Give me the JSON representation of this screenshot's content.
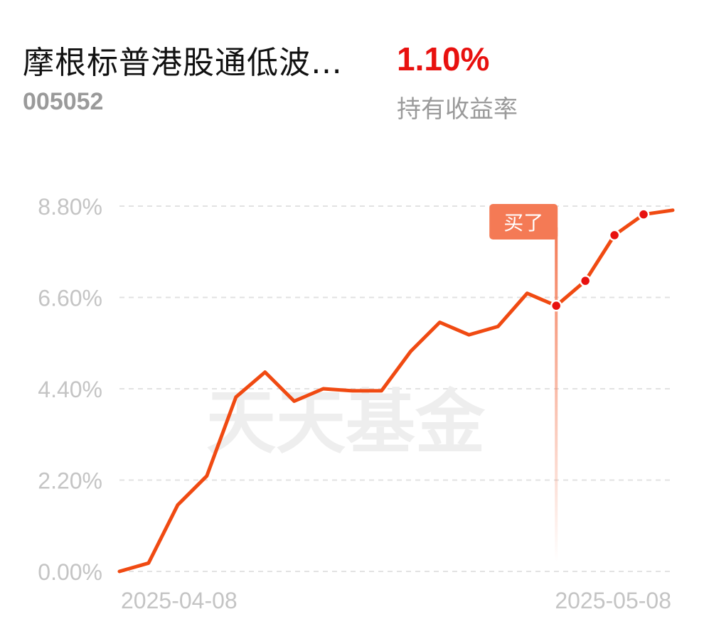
{
  "header": {
    "fund_name": "摩根标普港股通低波…",
    "fund_code": "005052",
    "holding_return": "1.10%",
    "holding_return_label": "持有收益率"
  },
  "watermark": "天天基金",
  "colors": {
    "line": "#f04a12",
    "return_red": "#e8110f",
    "buy_marker": "#f47a55",
    "grid": "#e2e2e2",
    "tick": "#c4c4c4"
  },
  "chart_data": {
    "type": "line",
    "title": "",
    "xlabel": "",
    "ylabel": "",
    "x_ticks": [
      "2025-04-08",
      "2025-05-08"
    ],
    "y_ticks": [
      "0.00%",
      "2.20%",
      "4.40%",
      "6.60%",
      "8.80%"
    ],
    "ylim": [
      0,
      8.8
    ],
    "grid": true,
    "series": [
      {
        "values": [
          0.0,
          0.2,
          1.6,
          2.3,
          4.2,
          4.8,
          4.1,
          4.4,
          4.35,
          4.35,
          5.3,
          6.0,
          5.7,
          5.9,
          6.7,
          6.4,
          7.0,
          8.1,
          8.6,
          8.7
        ]
      }
    ],
    "buy_marker": {
      "label": "买了",
      "point_index": 15
    },
    "highlighted_points": [
      15,
      16,
      17,
      18
    ]
  }
}
